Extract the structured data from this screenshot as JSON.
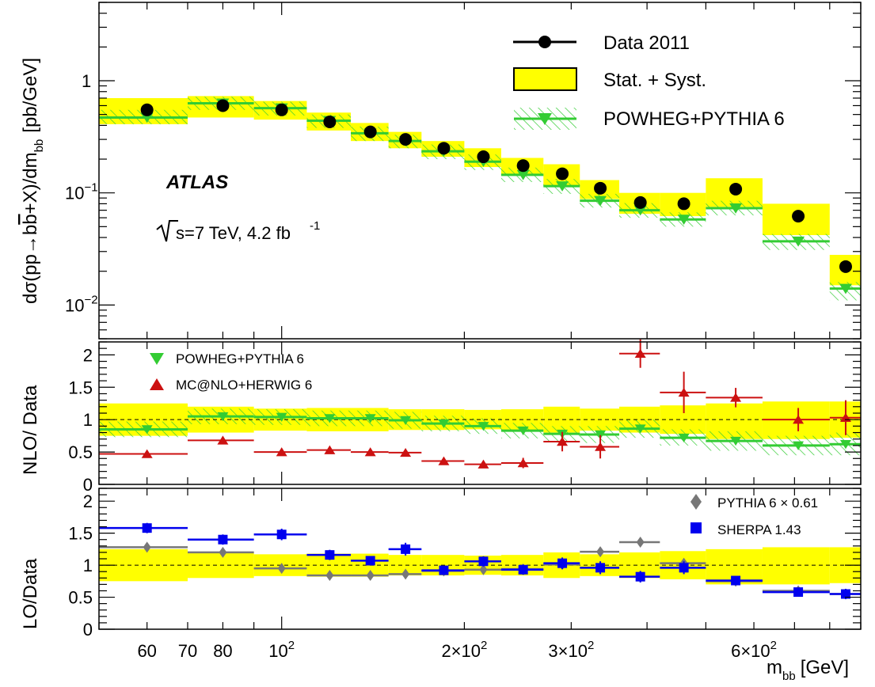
{
  "chart_data": {
    "type": "scatter",
    "experiment_label": "ATLAS",
    "energy_label": "s=7 TeV, 4.2 fb",
    "energy_label_sup": "-1",
    "xlabel": "m",
    "xlabel_sub": "bb",
    "xlabel_unit": "[GeV]",
    "xscale": "log",
    "xlim": [
      50,
      900
    ],
    "xticks": [
      {
        "value": 60,
        "label": "60"
      },
      {
        "value": 70,
        "label": "70"
      },
      {
        "value": 80,
        "label": "80"
      },
      {
        "value": 100,
        "label": "10",
        "sup": "2"
      },
      {
        "value": 200,
        "label": "2×10",
        "sup": "2"
      },
      {
        "value": 300,
        "label": "3×10",
        "sup": "2"
      },
      {
        "value": 600,
        "label": "6×10",
        "sup": "2"
      }
    ],
    "bins": [
      [
        50,
        70
      ],
      [
        70,
        90
      ],
      [
        90,
        110
      ],
      [
        110,
        130
      ],
      [
        130,
        150
      ],
      [
        150,
        170
      ],
      [
        170,
        200
      ],
      [
        200,
        230
      ],
      [
        230,
        270
      ],
      [
        270,
        310
      ],
      [
        310,
        360
      ],
      [
        360,
        420
      ],
      [
        420,
        500
      ],
      [
        500,
        620
      ],
      [
        620,
        800
      ],
      [
        800,
        900
      ]
    ],
    "bin_centers": [
      60,
      80,
      100,
      120,
      140,
      160,
      185,
      215,
      250,
      290,
      335,
      390,
      460,
      560,
      710,
      850
    ],
    "top": {
      "ylabel_pre": "dσ(pp→b",
      "ylabel_bbar": "b",
      "ylabel_post": "+X)/dm",
      "ylabel_sub": "bb",
      "ylabel_unit": "[pb/GeV]",
      "yscale": "log",
      "ylim": [
        0.005,
        5
      ],
      "yticks": [
        {
          "value": 1,
          "label": "1"
        },
        {
          "value": 0.1,
          "label": "10",
          "sup": "−1"
        },
        {
          "value": 0.01,
          "label": "10",
          "sup": "−2"
        }
      ],
      "legend": [
        {
          "label": "Data 2011",
          "kind": "marker-circle"
        },
        {
          "label": "Stat. + Syst.",
          "kind": "box-yellow"
        },
        {
          "label": "POWHEG+PYTHIA 6",
          "kind": "hatched-green-triangle"
        }
      ],
      "series": [
        {
          "name": "Data 2011",
          "values": [
            0.55,
            0.6,
            0.55,
            0.43,
            0.35,
            0.3,
            0.25,
            0.21,
            0.175,
            0.148,
            0.11,
            0.082,
            0.08,
            0.108,
            0.062,
            0.022
          ],
          "band_low": [
            0.41,
            0.47,
            0.45,
            0.36,
            0.29,
            0.25,
            0.21,
            0.17,
            0.145,
            0.115,
            0.088,
            0.065,
            0.062,
            0.075,
            0.042,
            0.015
          ],
          "band_high": [
            0.7,
            0.73,
            0.66,
            0.52,
            0.42,
            0.35,
            0.29,
            0.25,
            0.205,
            0.18,
            0.13,
            0.1,
            0.1,
            0.135,
            0.08,
            0.028
          ]
        },
        {
          "name": "POWHEG+PYTHIA 6",
          "values": [
            0.47,
            0.63,
            0.57,
            0.44,
            0.34,
            0.29,
            0.235,
            0.19,
            0.145,
            0.115,
            0.085,
            0.07,
            0.058,
            0.073,
            0.037,
            0.014
          ],
          "band_low": [
            0.41,
            0.55,
            0.49,
            0.38,
            0.29,
            0.25,
            0.2,
            0.16,
            0.125,
            0.098,
            0.074,
            0.06,
            0.05,
            0.063,
            0.031,
            0.011
          ],
          "band_high": [
            0.55,
            0.72,
            0.65,
            0.5,
            0.39,
            0.33,
            0.27,
            0.22,
            0.168,
            0.133,
            0.098,
            0.081,
            0.067,
            0.085,
            0.043,
            0.016
          ]
        }
      ]
    },
    "middle": {
      "ylabel": "NLO/ Data",
      "ylim": [
        0,
        2.2
      ],
      "yticks": [
        {
          "value": 0,
          "label": "0"
        },
        {
          "value": 0.5,
          "label": "0.5"
        },
        {
          "value": 1,
          "label": "1"
        },
        {
          "value": 1.5,
          "label": "1.5"
        },
        {
          "value": 2,
          "label": "2"
        }
      ],
      "data_band_low": [
        0.75,
        0.8,
        0.83,
        0.82,
        0.82,
        0.84,
        0.84,
        0.85,
        0.84,
        0.8,
        0.83,
        0.8,
        0.78,
        0.7,
        0.7,
        0.72
      ],
      "data_band_high": [
        1.25,
        1.2,
        1.17,
        1.18,
        1.18,
        1.16,
        1.16,
        1.15,
        1.16,
        1.2,
        1.17,
        1.2,
        1.22,
        1.25,
        1.28,
        1.28
      ],
      "series": [
        {
          "name": "POWHEG+PYTHIA 6",
          "values": [
            0.85,
            1.05,
            1.04,
            1.02,
            1.02,
            0.99,
            0.94,
            0.9,
            0.83,
            0.78,
            0.77,
            0.86,
            0.72,
            0.67,
            0.6,
            0.62
          ],
          "band_low": [
            0.73,
            0.93,
            0.92,
            0.9,
            0.9,
            0.86,
            0.82,
            0.78,
            0.71,
            0.65,
            0.64,
            0.72,
            0.6,
            0.52,
            0.45,
            0.45
          ],
          "band_high": [
            0.97,
            1.17,
            1.16,
            1.14,
            1.14,
            1.12,
            1.06,
            1.02,
            0.95,
            0.9,
            0.9,
            1.0,
            0.85,
            0.82,
            0.75,
            0.8
          ]
        },
        {
          "name": "MC@NLO+HERWIG 6",
          "values": [
            0.47,
            0.68,
            0.5,
            0.53,
            0.5,
            0.49,
            0.36,
            0.31,
            0.33,
            0.66,
            0.58,
            2.02,
            1.42,
            1.34,
            1.0,
            1.03
          ],
          "err": [
            0.03,
            0.04,
            0.04,
            0.04,
            0.04,
            0.04,
            0.05,
            0.04,
            0.08,
            0.15,
            0.18,
            0.22,
            0.32,
            0.15,
            0.18,
            0.27
          ]
        }
      ]
    },
    "bottom": {
      "ylabel": "LO/Data",
      "ylim": [
        0,
        2.2
      ],
      "yticks": [
        {
          "value": 0,
          "label": "0"
        },
        {
          "value": 0.5,
          "label": "0.5"
        },
        {
          "value": 1,
          "label": "1"
        },
        {
          "value": 1.5,
          "label": "1.5"
        },
        {
          "value": 2,
          "label": "2"
        }
      ],
      "data_band_low": [
        0.75,
        0.8,
        0.83,
        0.82,
        0.82,
        0.84,
        0.84,
        0.85,
        0.84,
        0.8,
        0.83,
        0.8,
        0.78,
        0.7,
        0.7,
        0.72
      ],
      "data_band_high": [
        1.25,
        1.2,
        1.17,
        1.18,
        1.18,
        1.16,
        1.16,
        1.15,
        1.16,
        1.2,
        1.17,
        1.2,
        1.22,
        1.25,
        1.28,
        1.28
      ],
      "legend_pythia_label": "PYTHIA 6 × 0.61",
      "series": [
        {
          "name": "PYTHIA 6 × 0.61",
          "values": [
            1.28,
            1.2,
            0.95,
            0.84,
            0.84,
            0.86,
            0.91,
            0.93,
            0.94,
            1.01,
            1.21,
            1.36,
            1.03,
            0.75,
            0.6,
            0.55
          ],
          "err": [
            0.03,
            0.03,
            0.03,
            0.03,
            0.03,
            0.03,
            0.03,
            0.03,
            0.03,
            0.03,
            0.03,
            0.03,
            0.03,
            0.03,
            0.03,
            0.03
          ]
        },
        {
          "name": "SHERPA 1.43",
          "values": [
            1.58,
            1.4,
            1.48,
            1.16,
            1.07,
            1.25,
            0.92,
            1.06,
            0.93,
            1.03,
            0.96,
            0.82,
            0.96,
            0.76,
            0.58,
            0.55
          ],
          "err": [
            0.08,
            0.08,
            0.09,
            0.08,
            0.07,
            0.1,
            0.07,
            0.08,
            0.08,
            0.09,
            0.1,
            0.09,
            0.1,
            0.05,
            0.05,
            0.08
          ]
        }
      ]
    },
    "colors": {
      "band": "#ffff00",
      "powheg": "#33cc33",
      "mcatnlo": "#cc1111",
      "pythia": "#777777",
      "sherpa": "#0000ee",
      "data": "#000000"
    }
  }
}
